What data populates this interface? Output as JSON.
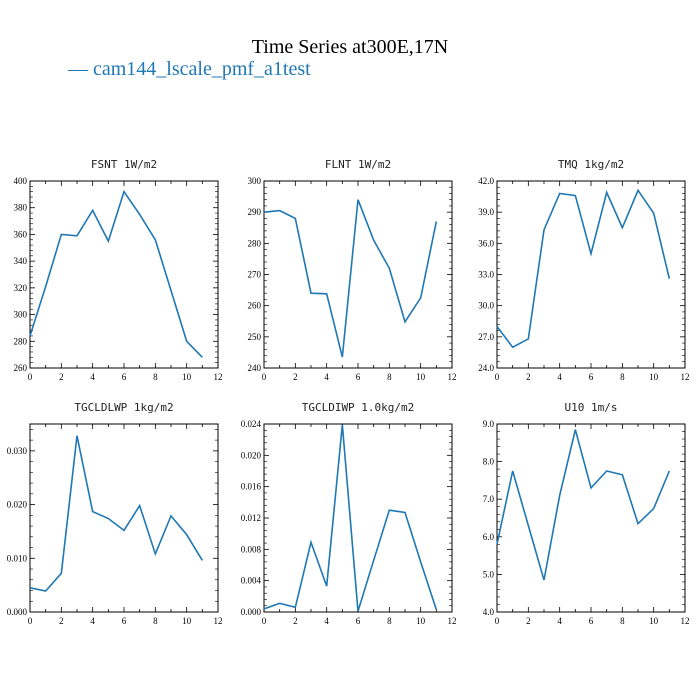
{
  "figure": {
    "title": "Time Series at300E,17N",
    "legend_label": "cam144_lscale_pmf_a1test",
    "colors": {
      "series": "#1f77b4",
      "axes": "#000000"
    }
  },
  "chart_data": [
    {
      "type": "line",
      "title": "FSNT   1W/m2",
      "x": [
        0,
        1,
        2,
        3,
        4,
        5,
        6,
        7,
        8,
        9,
        10,
        11
      ],
      "series": [
        {
          "name": "cam144_lscale_pmf_a1test",
          "values": [
            284,
            321,
            360,
            359,
            378,
            355,
            392,
            375,
            356,
            318,
            280,
            268
          ]
        }
      ],
      "xlim": [
        0,
        12
      ],
      "ylim": [
        260,
        400
      ],
      "xticks": [
        "0",
        "2",
        "4",
        "6",
        "8",
        "10",
        "12"
      ],
      "yticks": [
        "260",
        "280",
        "300",
        "320",
        "340",
        "360",
        "380",
        "400"
      ]
    },
    {
      "type": "line",
      "title": "FLNT   1W/m2",
      "x": [
        0,
        1,
        2,
        3,
        4,
        5,
        6,
        7,
        8,
        9,
        10,
        11
      ],
      "series": [
        {
          "name": "cam144_lscale_pmf_a1test",
          "values": [
            290,
            290.5,
            288,
            264,
            263.8,
            243.5,
            294,
            281,
            272,
            254.8,
            262.5,
            287
          ]
        }
      ],
      "xlim": [
        0,
        12
      ],
      "ylim": [
        240,
        300
      ],
      "xticks": [
        "0",
        "2",
        "4",
        "6",
        "8",
        "10",
        "12"
      ],
      "yticks": [
        "240",
        "250",
        "260",
        "270",
        "280",
        "290",
        "300"
      ]
    },
    {
      "type": "line",
      "title": "TMQ   1kg/m2",
      "x": [
        0,
        1,
        2,
        3,
        4,
        5,
        6,
        7,
        8,
        9,
        10,
        11
      ],
      "series": [
        {
          "name": "cam144_lscale_pmf_a1test",
          "values": [
            28.0,
            26.0,
            26.8,
            37.3,
            40.8,
            40.6,
            35.0,
            40.9,
            37.5,
            41.1,
            38.9,
            32.6
          ]
        }
      ],
      "xlim": [
        0,
        12
      ],
      "ylim": [
        24,
        42
      ],
      "xticks": [
        "0",
        "2",
        "4",
        "6",
        "8",
        "10",
        "12"
      ],
      "yticks": [
        "24.0",
        "27.0",
        "30.0",
        "33.0",
        "36.0",
        "39.0",
        "42.0"
      ]
    },
    {
      "type": "line",
      "title": "TGCLDLWP   1kg/m2",
      "x": [
        0,
        1,
        2,
        3,
        4,
        5,
        6,
        7,
        8,
        9,
        10,
        11
      ],
      "series": [
        {
          "name": "cam144_lscale_pmf_a1test",
          "values": [
            0.0045,
            0.0039,
            0.0072,
            0.0328,
            0.0187,
            0.0174,
            0.0152,
            0.0198,
            0.0108,
            0.0179,
            0.0144,
            0.0096
          ]
        }
      ],
      "xlim": [
        0,
        12
      ],
      "ylim": [
        0,
        0.035
      ],
      "xticks": [
        "0",
        "2",
        "4",
        "6",
        "8",
        "10",
        "12"
      ],
      "yticks": [
        "0.000",
        "0.010",
        "0.020",
        "0.030"
      ],
      "ytick_values": [
        0,
        0.01,
        0.02,
        0.03
      ]
    },
    {
      "type": "line",
      "title": "TGCLDIWP   1.0kg/m2",
      "x": [
        0,
        1,
        2,
        3,
        4,
        5,
        6,
        7,
        8,
        9,
        10,
        11
      ],
      "series": [
        {
          "name": "cam144_lscale_pmf_a1test",
          "values": [
            0.0004,
            0.0011,
            0.0006,
            0.0089,
            0.0033,
            0.0239,
            0.0001,
            0.0066,
            0.013,
            0.0127,
            0.0064,
            0.0003
          ]
        }
      ],
      "xlim": [
        0,
        12
      ],
      "ylim": [
        0,
        0.024
      ],
      "xticks": [
        "0",
        "2",
        "4",
        "6",
        "8",
        "10",
        "12"
      ],
      "yticks": [
        "0.000",
        "0.004",
        "0.008",
        "0.012",
        "0.016",
        "0.020",
        "0.024"
      ]
    },
    {
      "type": "line",
      "title": "U10   1m/s",
      "x": [
        0,
        1,
        2,
        3,
        4,
        5,
        6,
        7,
        8,
        9,
        10,
        11
      ],
      "series": [
        {
          "name": "cam144_lscale_pmf_a1test",
          "values": [
            5.8,
            7.75,
            6.3,
            4.85,
            7.1,
            8.85,
            7.3,
            7.75,
            7.65,
            6.35,
            6.75,
            7.75
          ]
        }
      ],
      "xlim": [
        0,
        12
      ],
      "ylim": [
        4,
        9
      ],
      "xticks": [
        "0",
        "2",
        "4",
        "6",
        "8",
        "10",
        "12"
      ],
      "yticks": [
        "4.0",
        "5.0",
        "6.0",
        "7.0",
        "8.0",
        "9.0"
      ]
    }
  ]
}
